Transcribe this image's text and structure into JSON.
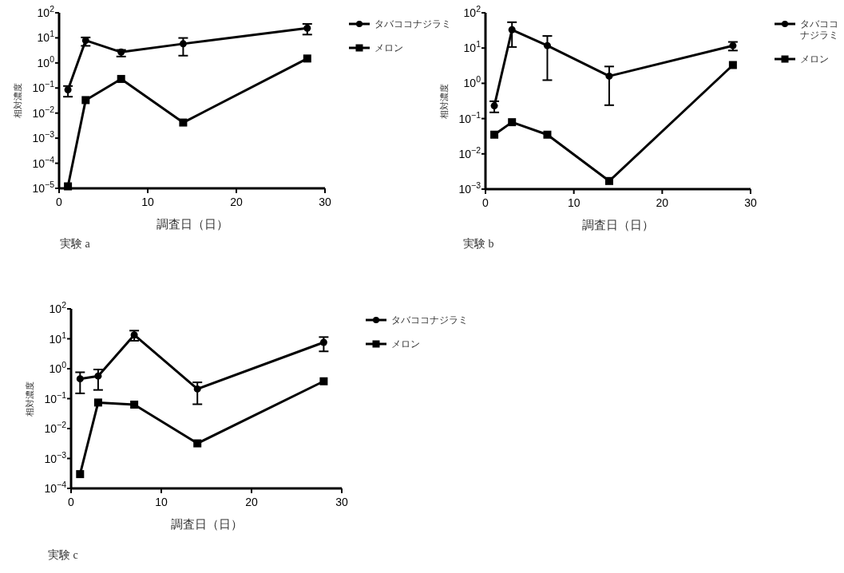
{
  "chart_data": [
    {
      "type": "line",
      "xlabel": "調査日（日）",
      "ylabel": "相対濃度",
      "log": "y",
      "legend": "right",
      "grid": false,
      "xlim": [
        0,
        30
      ],
      "xticks": [
        0,
        10,
        20,
        30
      ],
      "ylim": [
        1e-05,
        100
      ],
      "yticks": [
        {
          "value": 1e-05,
          "label": "10$^{−5}$"
        },
        {
          "value": 0.0001,
          "label": "10$^{−4}$"
        },
        {
          "value": 0.001,
          "label": "10$^{−3}$"
        },
        {
          "value": 0.01,
          "label": "10$^{−2}$"
        },
        {
          "value": 0.1,
          "label": "10$^{−1}$"
        },
        {
          "value": 1,
          "label": "10$^{0}$"
        },
        {
          "value": 10,
          "label": "10$^{1}$"
        },
        {
          "value": 100,
          "label": "10$^{2}$"
        }
      ],
      "x": [
        1,
        3,
        7,
        14,
        28
      ],
      "annotations": [
        "実験 a"
      ],
      "series": [
        {
          "name": "タバココナジラミ",
          "color": "#000000",
          "marker": "circle",
          "values": [
            0.085,
            7.9,
            2.7,
            5.8,
            24.5
          ],
          "errors": [
            [
              0.045,
              0.12
            ],
            [
              4.8,
              10.4
            ],
            [
              1.8,
              3.3
            ],
            [
              1.95,
              9.9
            ],
            [
              13.5,
              36
            ]
          ]
        },
        {
          "name": "メロン",
          "color": "#000000",
          "marker": "square",
          "values": [
            1.2e-05,
            0.033,
            0.23,
            0.0042,
            1.5
          ]
        }
      ]
    },
    {
      "type": "line",
      "xlabel": "調査日（日）",
      "ylabel": "相対濃度",
      "log": "y",
      "legend": "right",
      "grid": false,
      "xlim": [
        0,
        30
      ],
      "xticks": [
        0,
        10,
        20,
        30
      ],
      "ylim": [
        0.001,
        100
      ],
      "yticks": [
        {
          "value": 0.001,
          "label": "10$^{−3}$"
        },
        {
          "value": 0.01,
          "label": "10$^{−2}$"
        },
        {
          "value": 0.1,
          "label": "10$^{−1}$"
        },
        {
          "value": 1,
          "label": "10$^{0}$"
        },
        {
          "value": 10,
          "label": "10$^{1}$"
        },
        {
          "value": 100,
          "label": "10$^{2}$"
        }
      ],
      "x": [
        1,
        3,
        7,
        14,
        28
      ],
      "annotations": [
        "実験 b"
      ],
      "series": [
        {
          "name": "タバココナジラミ",
          "color": "#000000",
          "marker": "circle",
          "values": [
            0.23,
            33,
            11.7,
            1.6,
            11.7
          ],
          "errors": [
            [
              0.15,
              0.31
            ],
            [
              10.7,
              54
            ],
            [
              1.23,
              22
            ],
            [
              0.24,
              3.0
            ],
            [
              8.5,
              14.9
            ]
          ]
        },
        {
          "name": "メロン",
          "color": "#000000",
          "marker": "square",
          "values": [
            0.035,
            0.079,
            0.035,
            0.0017,
            3.3
          ]
        }
      ]
    },
    {
      "type": "line",
      "xlabel": "調査日（日）",
      "ylabel": "相対濃度",
      "log": "y",
      "legend": "right",
      "grid": false,
      "xlim": [
        0,
        30
      ],
      "xticks": [
        0,
        10,
        20,
        30
      ],
      "ylim": [
        0.0001,
        100
      ],
      "yticks": [
        {
          "value": 0.0001,
          "label": "10$^{−4}$"
        },
        {
          "value": 0.001,
          "label": "10$^{−3}$"
        },
        {
          "value": 0.01,
          "label": "10$^{−2}$"
        },
        {
          "value": 0.1,
          "label": "10$^{−1}$"
        },
        {
          "value": 1,
          "label": "10$^{0}$"
        },
        {
          "value": 10,
          "label": "10$^{1}$"
        },
        {
          "value": 100,
          "label": "10$^{2}$"
        }
      ],
      "x": [
        1,
        3,
        7,
        14,
        28
      ],
      "annotations": [
        "実験 c"
      ],
      "series": [
        {
          "name": "タバココナジラミ",
          "color": "#000000",
          "marker": "circle",
          "values": [
            0.46,
            0.57,
            13.4,
            0.21,
            7.6
          ],
          "errors": [
            [
              0.15,
              0.76
            ],
            [
              0.195,
              0.94
            ],
            [
              8.6,
              18.7
            ],
            [
              0.065,
              0.35
            ],
            [
              3.8,
              11.4
            ]
          ]
        },
        {
          "name": "メロン",
          "color": "#000000",
          "marker": "square",
          "values": [
            0.0003,
            0.074,
            0.063,
            0.0032,
            0.38
          ]
        }
      ]
    }
  ]
}
